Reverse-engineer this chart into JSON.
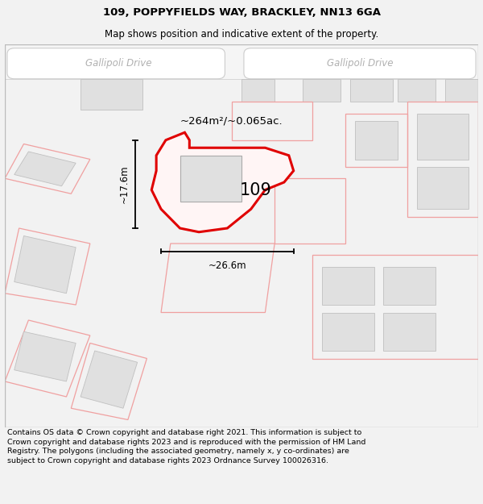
{
  "title_line1": "109, POPPYFIELDS WAY, BRACKLEY, NN13 6GA",
  "title_line2": "Map shows position and indicative extent of the property.",
  "footer_text": "Contains OS data © Crown copyright and database right 2021. This information is subject to Crown copyright and database rights 2023 and is reproduced with the permission of HM Land Registry. The polygons (including the associated geometry, namely x, y co-ordinates) are subject to Crown copyright and database rights 2023 Ordnance Survey 100026316.",
  "area_label": "~264m²/~0.065ac.",
  "number_label": "109",
  "width_label": "~26.6m",
  "height_label": "~17.6m",
  "road_label_left": "Gallipoli Drive",
  "road_label_right": "Gallipoli Drive",
  "bg_color": "#f2f2f2",
  "map_bg": "#ffffff",
  "plot_border_color": "#e00000",
  "other_border_color": "#f0a0a0",
  "building_fill": "#e0e0e0",
  "title_fontsize": 9.5,
  "subtitle_fontsize": 8.5,
  "footer_fontsize": 6.8,
  "road_fontsize": 8.5
}
